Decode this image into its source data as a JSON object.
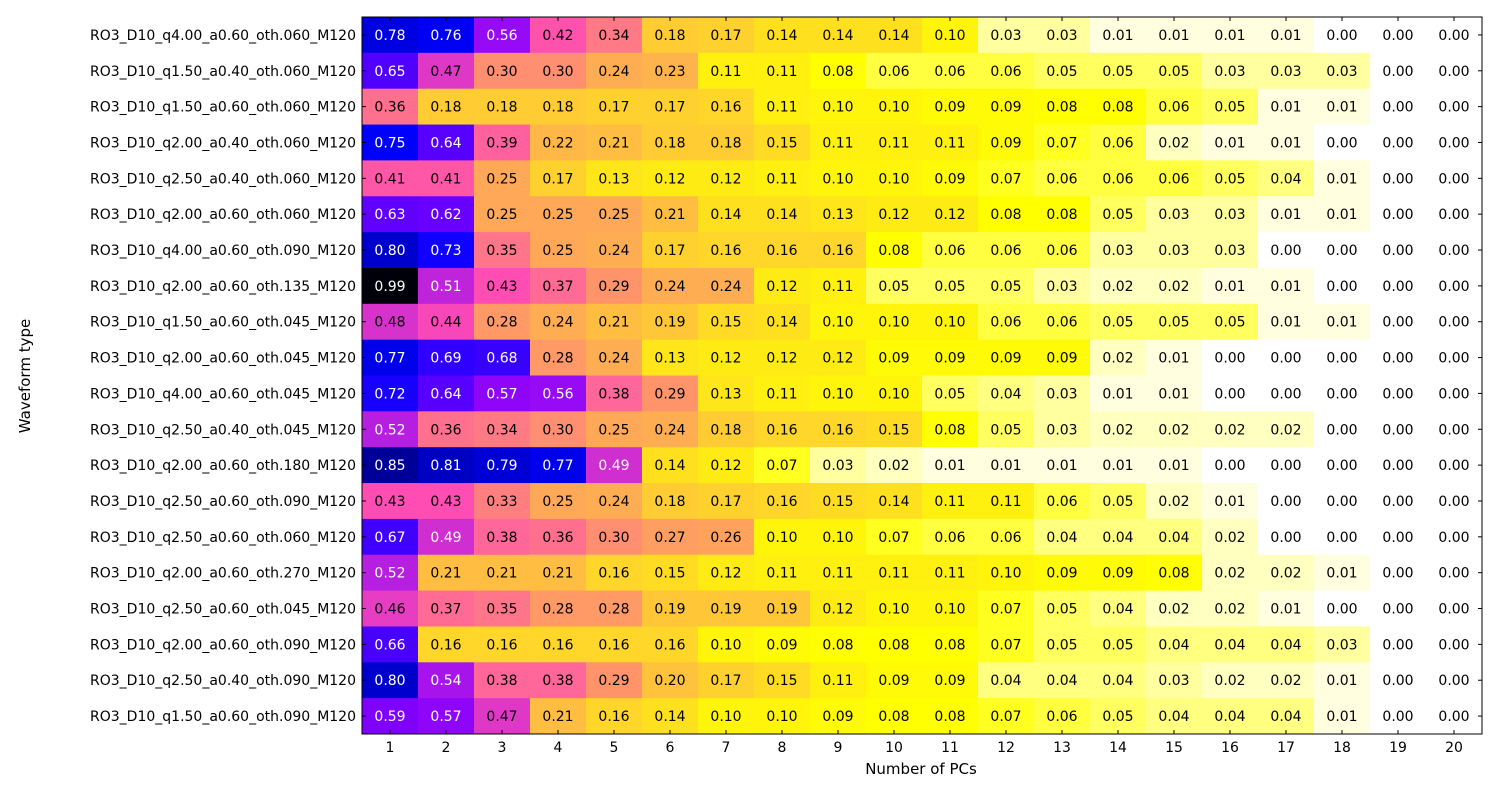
{
  "chart_data": {
    "type": "heatmap",
    "xlabel": "Number of PCs",
    "ylabel": "Waveform type",
    "x_categories": [
      "1",
      "2",
      "3",
      "4",
      "5",
      "6",
      "7",
      "8",
      "9",
      "10",
      "11",
      "12",
      "13",
      "14",
      "15",
      "16",
      "17",
      "18",
      "19",
      "20"
    ],
    "y_categories": [
      "RO3_D10_q4.00_a0.60_oth.060_M120",
      "RO3_D10_q1.50_a0.40_oth.060_M120",
      "RO3_D10_q1.50_a0.60_oth.060_M120",
      "RO3_D10_q2.00_a0.40_oth.060_M120",
      "RO3_D10_q2.50_a0.40_oth.060_M120",
      "RO3_D10_q2.00_a0.60_oth.060_M120",
      "RO3_D10_q4.00_a0.60_oth.090_M120",
      "RO3_D10_q2.00_a0.60_oth.135_M120",
      "RO3_D10_q1.50_a0.60_oth.045_M120",
      "RO3_D10_q2.00_a0.60_oth.045_M120",
      "RO3_D10_q4.00_a0.60_oth.045_M120",
      "RO3_D10_q2.50_a0.40_oth.045_M120",
      "RO3_D10_q2.00_a0.60_oth.180_M120",
      "RO3_D10_q2.50_a0.60_oth.090_M120",
      "RO3_D10_q2.50_a0.60_oth.060_M120",
      "RO3_D10_q2.00_a0.60_oth.270_M120",
      "RO3_D10_q2.50_a0.60_oth.045_M120",
      "RO3_D10_q2.00_a0.60_oth.090_M120",
      "RO3_D10_q2.50_a0.40_oth.090_M120",
      "RO3_D10_q1.50_a0.60_oth.090_M120"
    ],
    "values": [
      [
        0.78,
        0.76,
        0.56,
        0.42,
        0.34,
        0.18,
        0.17,
        0.14,
        0.14,
        0.14,
        0.1,
        0.03,
        0.03,
        0.01,
        0.01,
        0.01,
        0.01,
        0.0,
        0.0,
        0.0
      ],
      [
        0.65,
        0.47,
        0.3,
        0.3,
        0.24,
        0.23,
        0.11,
        0.11,
        0.08,
        0.06,
        0.06,
        0.06,
        0.05,
        0.05,
        0.05,
        0.03,
        0.03,
        0.03,
        0.0,
        0.0
      ],
      [
        0.36,
        0.18,
        0.18,
        0.18,
        0.17,
        0.17,
        0.16,
        0.11,
        0.1,
        0.1,
        0.09,
        0.09,
        0.08,
        0.08,
        0.06,
        0.05,
        0.01,
        0.01,
        0.0,
        0.0
      ],
      [
        0.75,
        0.64,
        0.39,
        0.22,
        0.21,
        0.18,
        0.18,
        0.15,
        0.11,
        0.11,
        0.11,
        0.09,
        0.07,
        0.06,
        0.02,
        0.01,
        0.01,
        0.0,
        0.0,
        0.0
      ],
      [
        0.41,
        0.41,
        0.25,
        0.17,
        0.13,
        0.12,
        0.12,
        0.11,
        0.1,
        0.1,
        0.09,
        0.07,
        0.06,
        0.06,
        0.06,
        0.05,
        0.04,
        0.01,
        0.0,
        0.0
      ],
      [
        0.63,
        0.62,
        0.25,
        0.25,
        0.25,
        0.21,
        0.14,
        0.14,
        0.13,
        0.12,
        0.12,
        0.08,
        0.08,
        0.05,
        0.03,
        0.03,
        0.01,
        0.01,
        0.0,
        0.0
      ],
      [
        0.8,
        0.73,
        0.35,
        0.25,
        0.24,
        0.17,
        0.16,
        0.16,
        0.16,
        0.08,
        0.06,
        0.06,
        0.06,
        0.03,
        0.03,
        0.03,
        0.0,
        0.0,
        0.0,
        0.0
      ],
      [
        0.99,
        0.51,
        0.43,
        0.37,
        0.29,
        0.24,
        0.24,
        0.12,
        0.11,
        0.05,
        0.05,
        0.05,
        0.03,
        0.02,
        0.02,
        0.01,
        0.01,
        0.0,
        0.0,
        0.0
      ],
      [
        0.48,
        0.44,
        0.28,
        0.24,
        0.21,
        0.19,
        0.15,
        0.14,
        0.1,
        0.1,
        0.1,
        0.06,
        0.06,
        0.05,
        0.05,
        0.05,
        0.01,
        0.01,
        0.0,
        0.0
      ],
      [
        0.77,
        0.69,
        0.68,
        0.28,
        0.24,
        0.13,
        0.12,
        0.12,
        0.12,
        0.09,
        0.09,
        0.09,
        0.09,
        0.02,
        0.01,
        0.0,
        0.0,
        0.0,
        0.0,
        0.0
      ],
      [
        0.72,
        0.64,
        0.57,
        0.56,
        0.38,
        0.29,
        0.13,
        0.11,
        0.1,
        0.1,
        0.05,
        0.04,
        0.03,
        0.01,
        0.01,
        0.0,
        0.0,
        0.0,
        0.0,
        0.0
      ],
      [
        0.52,
        0.36,
        0.34,
        0.3,
        0.25,
        0.24,
        0.18,
        0.16,
        0.16,
        0.15,
        0.08,
        0.05,
        0.03,
        0.02,
        0.02,
        0.02,
        0.02,
        0.0,
        0.0,
        0.0
      ],
      [
        0.85,
        0.81,
        0.79,
        0.77,
        0.49,
        0.14,
        0.12,
        0.07,
        0.03,
        0.02,
        0.01,
        0.01,
        0.01,
        0.01,
        0.01,
        0.0,
        0.0,
        0.0,
        0.0,
        0.0
      ],
      [
        0.43,
        0.43,
        0.33,
        0.25,
        0.24,
        0.18,
        0.17,
        0.16,
        0.15,
        0.14,
        0.11,
        0.11,
        0.06,
        0.05,
        0.02,
        0.01,
        0.0,
        0.0,
        0.0,
        0.0
      ],
      [
        0.67,
        0.49,
        0.38,
        0.36,
        0.3,
        0.27,
        0.26,
        0.1,
        0.1,
        0.07,
        0.06,
        0.06,
        0.04,
        0.04,
        0.04,
        0.02,
        0.0,
        0.0,
        0.0,
        0.0
      ],
      [
        0.52,
        0.21,
        0.21,
        0.21,
        0.16,
        0.15,
        0.12,
        0.11,
        0.11,
        0.11,
        0.11,
        0.1,
        0.09,
        0.09,
        0.08,
        0.02,
        0.02,
        0.01,
        0.0,
        0.0
      ],
      [
        0.46,
        0.37,
        0.35,
        0.28,
        0.28,
        0.19,
        0.19,
        0.19,
        0.12,
        0.1,
        0.1,
        0.07,
        0.05,
        0.04,
        0.02,
        0.02,
        0.01,
        0.0,
        0.0,
        0.0
      ],
      [
        0.66,
        0.16,
        0.16,
        0.16,
        0.16,
        0.16,
        0.1,
        0.09,
        0.08,
        0.08,
        0.08,
        0.07,
        0.05,
        0.05,
        0.04,
        0.04,
        0.04,
        0.03,
        0.0,
        0.0
      ],
      [
        0.8,
        0.54,
        0.38,
        0.38,
        0.29,
        0.2,
        0.17,
        0.15,
        0.11,
        0.09,
        0.09,
        0.04,
        0.04,
        0.04,
        0.03,
        0.02,
        0.02,
        0.01,
        0.0,
        0.0
      ],
      [
        0.59,
        0.57,
        0.47,
        0.21,
        0.16,
        0.14,
        0.1,
        0.1,
        0.09,
        0.08,
        0.08,
        0.07,
        0.06,
        0.05,
        0.04,
        0.04,
        0.04,
        0.01,
        0.0,
        0.0
      ]
    ],
    "value_format": "0.00",
    "colormap": "gnuplot2_r",
    "vmin": 0,
    "vmax": 1,
    "grid": false,
    "legend": "none"
  }
}
